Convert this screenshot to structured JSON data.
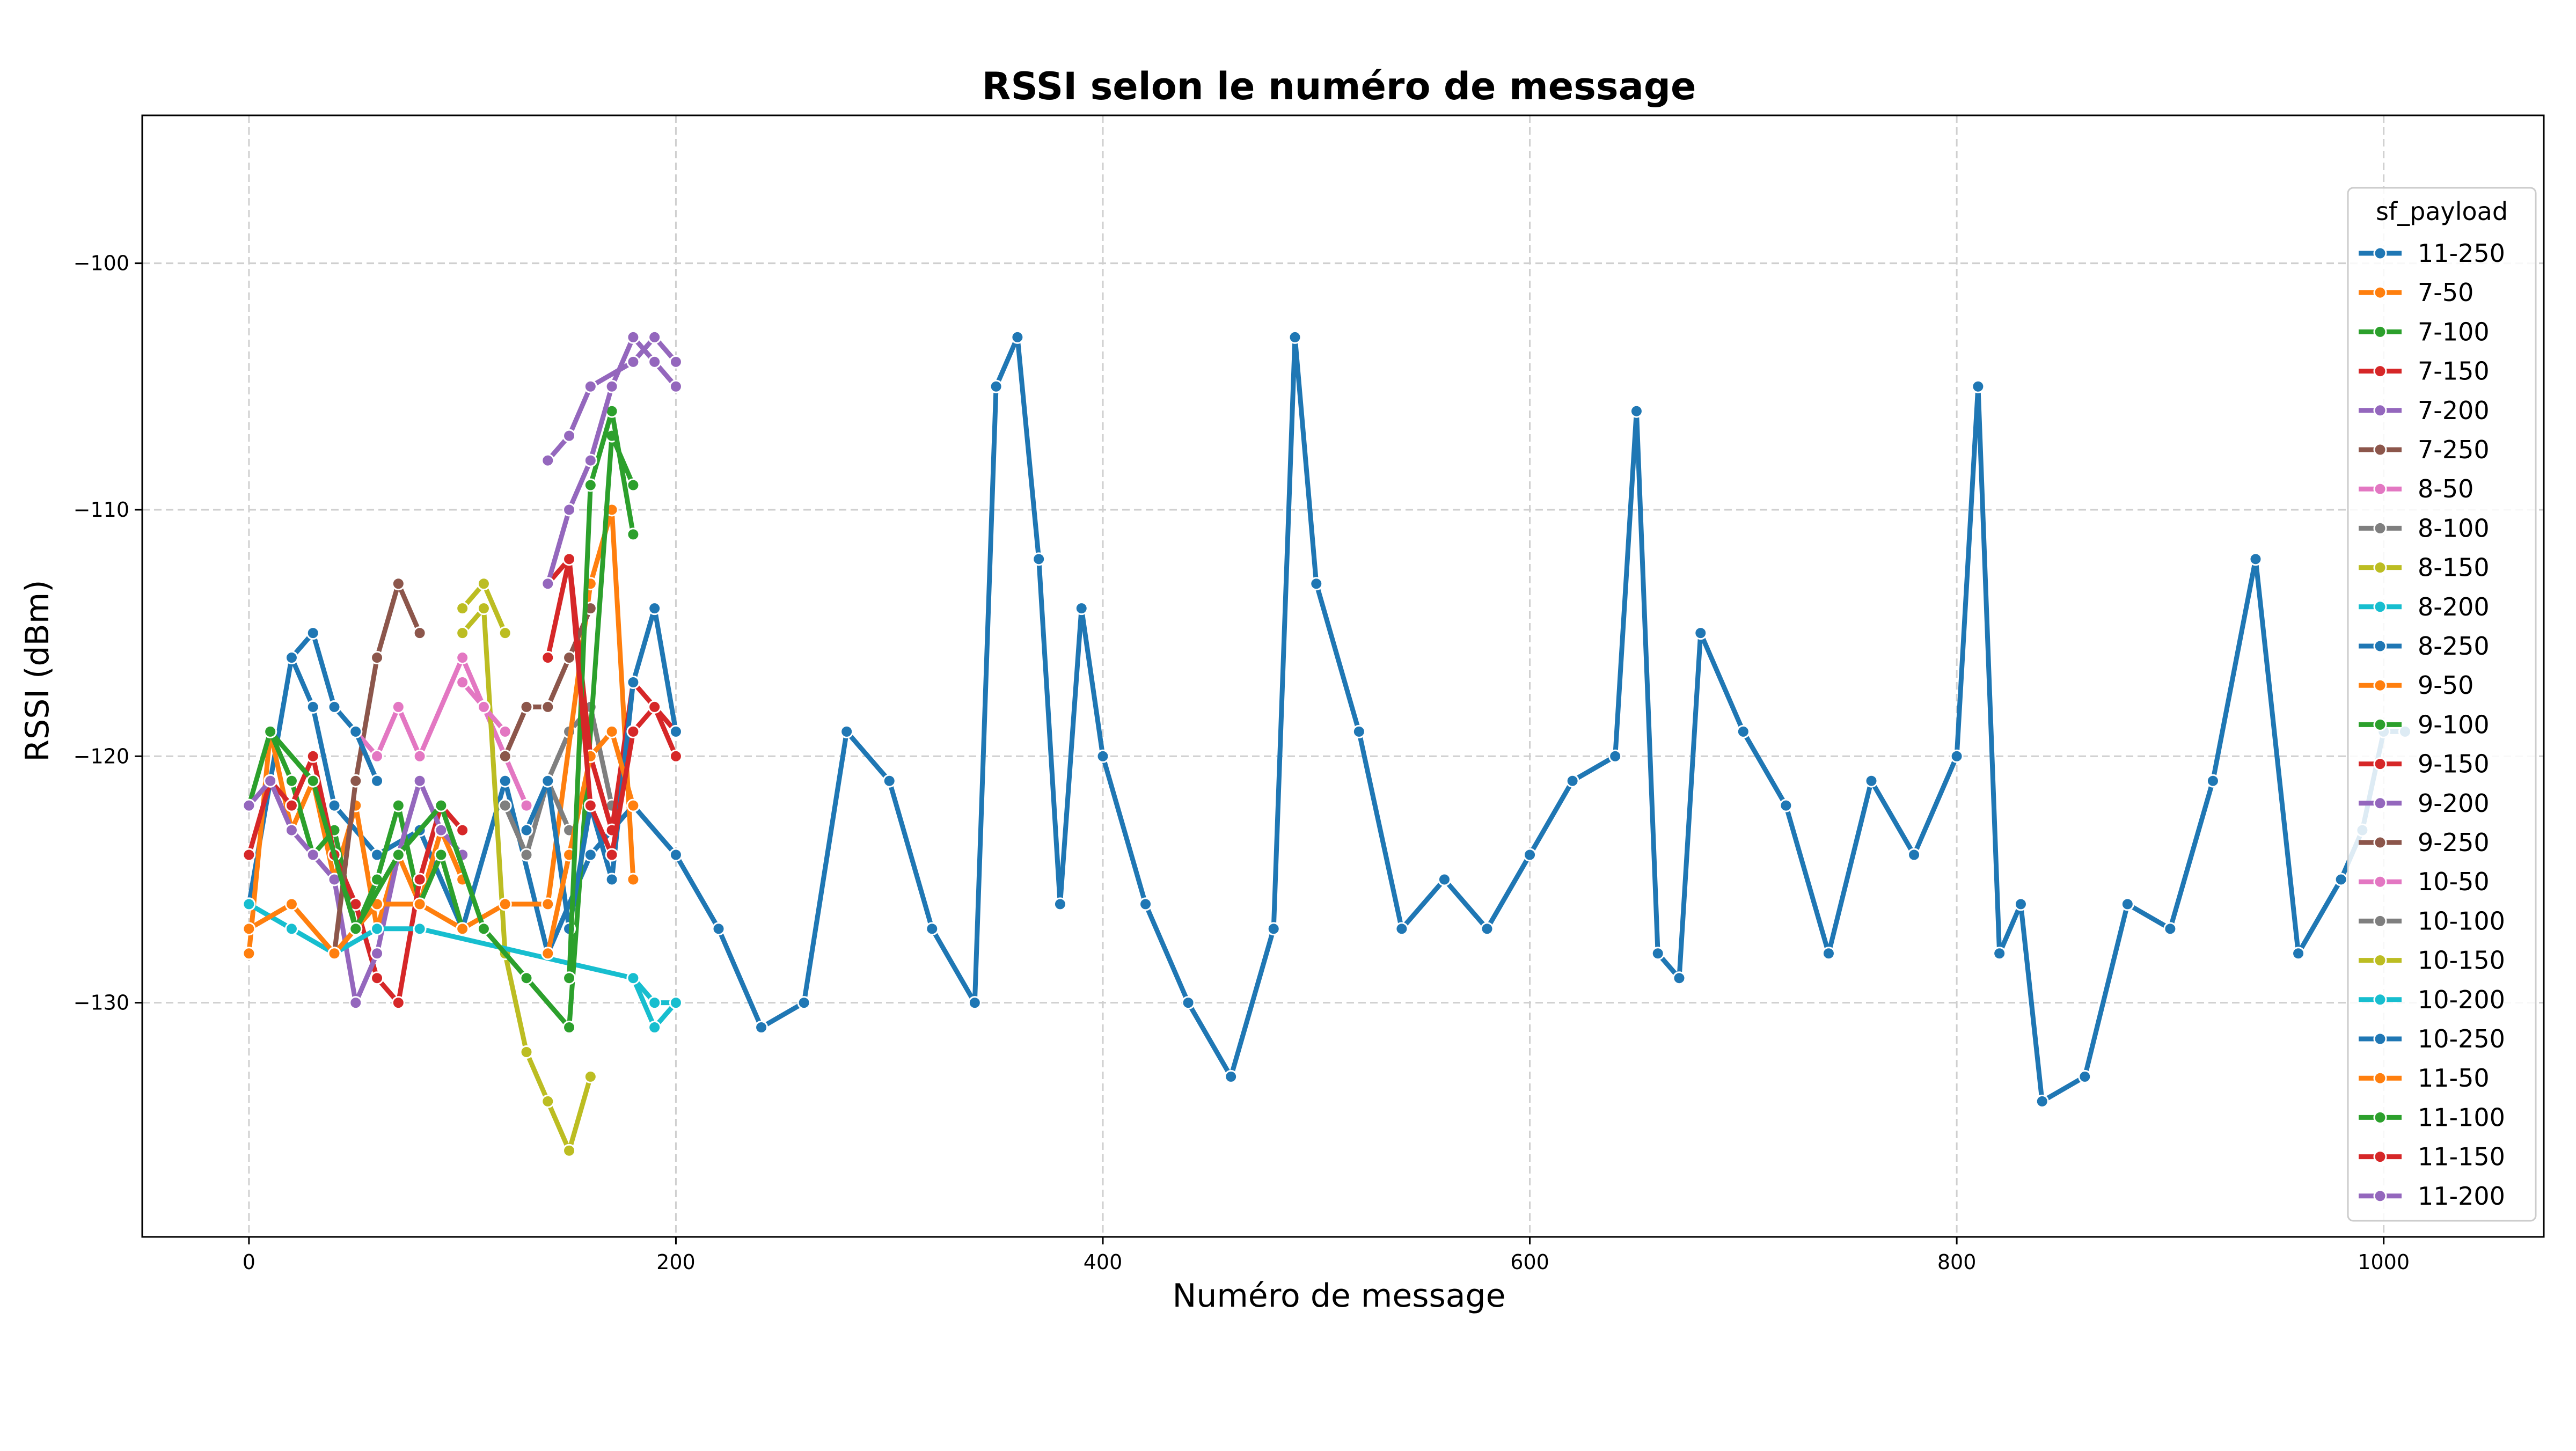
{
  "chart_data": {
    "type": "line",
    "title": "RSSI selon le numéro de message",
    "xlabel": "Numéro de message",
    "ylabel": "RSSI (dBm)",
    "xlim": [
      -50,
      1075
    ],
    "ylim": [
      -139.5,
      -94
    ],
    "xticks": [
      0,
      200,
      400,
      600,
      800,
      1000
    ],
    "xtick_labels": [
      "0",
      "200",
      "400",
      "600",
      "800",
      "1000"
    ],
    "yticks": [
      -100,
      -110,
      -120,
      -130
    ],
    "ytick_labels": [
      "−100",
      "−110",
      "−120",
      "−130"
    ],
    "grid": true,
    "markers": true,
    "legend": {
      "title": "sf_payload",
      "position": "right"
    },
    "series": [
      {
        "name": "11-250",
        "color": "#1f77b4",
        "x": [
          0,
          10,
          20,
          30,
          40,
          60,
          80,
          100,
          120,
          140,
          160,
          180,
          200,
          220,
          240,
          260,
          280,
          300,
          320,
          340,
          350,
          360,
          370,
          380,
          390,
          400,
          420,
          440,
          460,
          480,
          490,
          500,
          520,
          540,
          560,
          580,
          600,
          620,
          640,
          650,
          660,
          670,
          680,
          700,
          720,
          740,
          760,
          780,
          800,
          810,
          820,
          830,
          840,
          860,
          880,
          900,
          920,
          940,
          960,
          980,
          990,
          1000,
          1010
        ],
        "y": [
          -126,
          -121,
          -116,
          -118,
          -122,
          -124,
          -123,
          -127,
          -121,
          -128,
          -124,
          -122,
          -124,
          -127,
          -131,
          -130,
          -119,
          -121,
          -127,
          -130,
          -105,
          -103,
          -112,
          -126,
          -114,
          -120,
          -126,
          -130,
          -133,
          -127,
          -103,
          -113,
          -119,
          -127,
          -125,
          -127,
          -124,
          -121,
          -120,
          -106,
          -128,
          -129,
          -115,
          -119,
          -122,
          -128,
          -121,
          -124,
          -120,
          -105,
          -128,
          -126,
          -134,
          -133,
          -126,
          -127,
          -121,
          -112,
          -128,
          -125,
          -123,
          -119,
          -119
        ]
      },
      {
        "name": "7-50",
        "color": "#ff7f0e",
        "x": [
          0,
          10,
          20,
          30,
          40,
          50,
          60,
          70,
          80,
          90,
          100
        ],
        "y": [
          -128,
          -119,
          -123,
          -121,
          -125,
          -122,
          -127,
          -124,
          -126,
          -123,
          -125
        ]
      },
      {
        "name": "7-100",
        "color": "#2ca02c",
        "x": [
          0,
          10,
          20,
          30,
          40,
          50,
          60,
          70,
          80,
          90,
          100
        ],
        "y": [
          -122,
          -119,
          -121,
          -124,
          -123,
          -127,
          -125,
          -122,
          -126,
          -124,
          -127
        ]
      },
      {
        "name": "7-150",
        "color": "#d62728",
        "x": [
          0,
          10,
          20,
          30,
          40,
          50,
          60,
          70,
          80,
          90,
          100
        ],
        "y": [
          -124,
          -121,
          -122,
          -120,
          -124,
          -126,
          -129,
          -130,
          -125,
          -122,
          -123
        ]
      },
      {
        "name": "7-200",
        "color": "#9467bd",
        "x": [
          0,
          10,
          20,
          30,
          40,
          50,
          60,
          70,
          80,
          90,
          100
        ],
        "y": [
          -122,
          -121,
          -123,
          -124,
          -125,
          -130,
          -128,
          -124,
          -121,
          -123,
          -124
        ]
      },
      {
        "name": "7-250",
        "color": "#8c564b",
        "x": [
          40,
          50,
          60,
          70,
          80
        ],
        "y": [
          -128,
          -121,
          -116,
          -113,
          -115
        ]
      },
      {
        "name": "8-50",
        "color": "#e377c2",
        "x": [
          50,
          60,
          70,
          80,
          100,
          110,
          120,
          130
        ],
        "y": [
          -119,
          -120,
          -118,
          -120,
          -116,
          -118,
          -120,
          -122
        ]
      },
      {
        "name": "8-100",
        "color": "#7f7f7f",
        "x": [
          140,
          150,
          160,
          170
        ],
        "y": [
          -121,
          -119,
          -118,
          -122
        ]
      },
      {
        "name": "8-150",
        "color": "#bcbd22",
        "x": [
          100,
          110,
          120,
          130,
          140,
          150,
          160
        ],
        "y": [
          -115,
          -114,
          -128,
          -132,
          -134,
          -136,
          -133
        ]
      },
      {
        "name": "8-200",
        "color": "#17becf",
        "x": [
          0,
          20,
          40,
          60,
          80,
          180,
          190,
          200
        ],
        "y": [
          -126,
          -127,
          -128,
          -127,
          -127,
          -129,
          -131,
          -130
        ]
      },
      {
        "name": "8-250",
        "color": "#1f77b4",
        "x": [
          20,
          30,
          40,
          50,
          60
        ],
        "y": [
          -116,
          -115,
          -118,
          -119,
          -121
        ]
      },
      {
        "name": "9-50",
        "color": "#ff7f0e",
        "x": [
          0,
          20,
          40,
          60,
          80,
          100,
          120,
          140,
          160,
          170,
          180
        ],
        "y": [
          -127,
          -126,
          -128,
          -126,
          -126,
          -127,
          -126,
          -126,
          -113,
          -110,
          -125
        ]
      },
      {
        "name": "9-100",
        "color": "#2ca02c",
        "x": [
          10,
          30,
          50,
          70,
          90,
          110,
          130,
          150,
          170,
          180
        ],
        "y": [
          -119,
          -121,
          -127,
          -124,
          -122,
          -127,
          -129,
          -131,
          -107,
          -109
        ]
      },
      {
        "name": "9-150",
        "color": "#d62728",
        "x": [
          140,
          150,
          160,
          170,
          180,
          190,
          200
        ],
        "y": [
          -113,
          -112,
          -120,
          -123,
          -117,
          -118,
          -119
        ]
      },
      {
        "name": "9-200",
        "color": "#9467bd",
        "x": [
          140,
          150,
          160,
          180,
          190,
          200
        ],
        "y": [
          -108,
          -107,
          -105,
          -104,
          -103,
          -104
        ]
      },
      {
        "name": "9-250",
        "color": "#8c564b",
        "x": [
          120,
          130,
          140,
          150,
          160
        ],
        "y": [
          -120,
          -118,
          -118,
          -116,
          -114
        ]
      },
      {
        "name": "10-50",
        "color": "#e377c2",
        "x": [
          100,
          110,
          120
        ],
        "y": [
          -117,
          -118,
          -119
        ]
      },
      {
        "name": "10-100",
        "color": "#7f7f7f",
        "x": [
          120,
          130,
          140,
          150
        ],
        "y": [
          -122,
          -124,
          -121,
          -123
        ]
      },
      {
        "name": "10-150",
        "color": "#bcbd22",
        "x": [
          100,
          110,
          120
        ],
        "y": [
          -114,
          -113,
          -115
        ]
      },
      {
        "name": "10-200",
        "color": "#17becf",
        "x": [
          180,
          190,
          200
        ],
        "y": [
          -129,
          -130,
          -130
        ]
      },
      {
        "name": "10-250",
        "color": "#1f77b4",
        "x": [
          130,
          140,
          150,
          160,
          170,
          180,
          190,
          200
        ],
        "y": [
          -123,
          -121,
          -127,
          -122,
          -125,
          -117,
          -114,
          -119
        ]
      },
      {
        "name": "11-50",
        "color": "#ff7f0e",
        "x": [
          140,
          150,
          160,
          170,
          180
        ],
        "y": [
          -128,
          -124,
          -120,
          -119,
          -122
        ]
      },
      {
        "name": "11-100",
        "color": "#2ca02c",
        "x": [
          150,
          160,
          170,
          180
        ],
        "y": [
          -129,
          -109,
          -106,
          -111
        ]
      },
      {
        "name": "11-150",
        "color": "#d62728",
        "x": [
          140,
          150,
          160,
          170,
          180,
          190,
          200
        ],
        "y": [
          -116,
          -112,
          -122,
          -124,
          -119,
          -118,
          -120
        ]
      },
      {
        "name": "11-200",
        "color": "#9467bd",
        "x": [
          140,
          150,
          160,
          170,
          180,
          190,
          200
        ],
        "y": [
          -113,
          -110,
          -108,
          -105,
          -103,
          -104,
          -105
        ]
      }
    ]
  }
}
